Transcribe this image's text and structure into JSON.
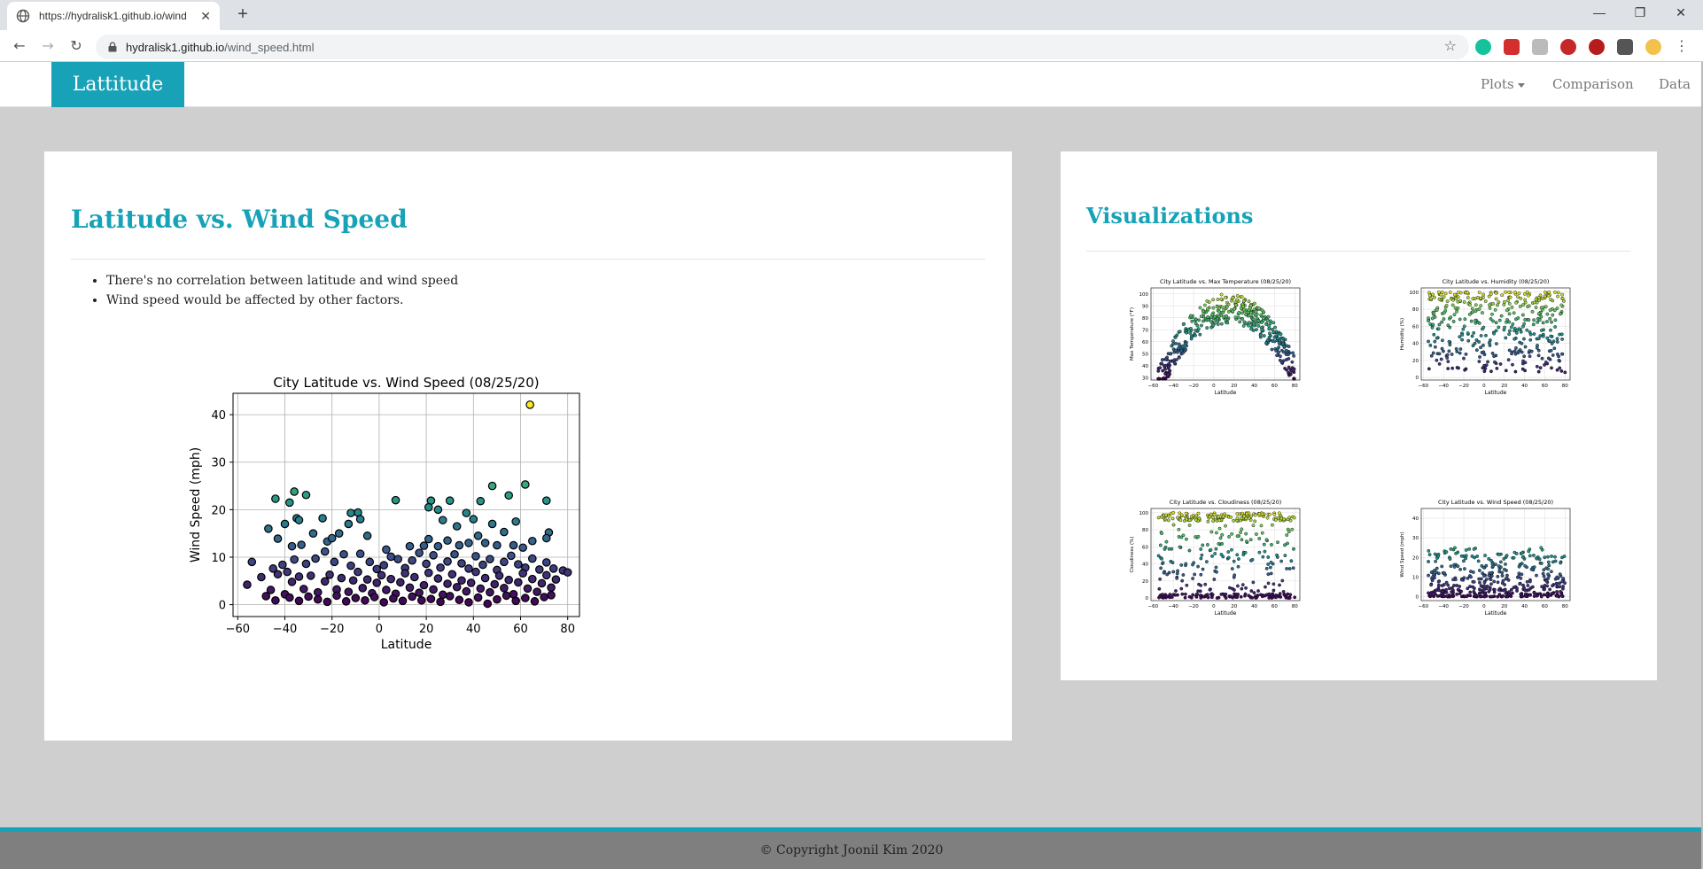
{
  "browser": {
    "tab_title": "https://hydralisk1.github.io/wind",
    "tab_close": "✕",
    "new_tab": "+",
    "url_host": "hydralisk1.github.io",
    "url_path": "/wind_speed.html",
    "win_min": "—",
    "win_restore": "❐",
    "win_close": "✕"
  },
  "nav": {
    "brand": "Lattitude",
    "plots": "Plots",
    "comparison": "Comparison",
    "data": "Data"
  },
  "main": {
    "title": "Latitude vs. Wind Speed",
    "bullets": [
      "There's no correlation between latitude and wind speed",
      "Wind speed would be affected by other factors."
    ]
  },
  "side": {
    "title": "Visualizations",
    "thumbnails": [
      {
        "title": "City Latitude vs. Max Temperature (08/25/20)",
        "ylabel": "Max Temperature (°F)",
        "xlabel": "Latitude",
        "yticks": [
          "30",
          "40",
          "50",
          "60",
          "70",
          "80",
          "90",
          "100"
        ]
      },
      {
        "title": "City Latitude vs. Humidity (08/25/20)",
        "ylabel": "Humidity (%)",
        "xlabel": "Latitude",
        "yticks": [
          "0",
          "20",
          "40",
          "60",
          "80",
          "100"
        ]
      },
      {
        "title": "City Latitude vs. Cloudiness (08/25/20)",
        "ylabel": "Cloudiness (%)",
        "xlabel": "Latitude",
        "yticks": [
          "0",
          "20",
          "40",
          "60",
          "80",
          "100"
        ]
      },
      {
        "title": "City Latitude vs. Wind Speed (08/25/20)",
        "ylabel": "Wind Speed (mph)",
        "xlabel": "Latitude",
        "yticks": [
          "0",
          "10",
          "20",
          "30",
          "40"
        ]
      }
    ]
  },
  "footer": {
    "copyright": "© Copyright Joonil Kim 2020"
  },
  "colors": {
    "accent": "#17a2b8",
    "background": "#cfcfcf"
  },
  "chart_data": {
    "type": "scatter",
    "title": "City Latitude vs. Wind Speed (08/25/20)",
    "xlabel": "Latitude",
    "ylabel": "Wind Speed (mph)",
    "xlim": [
      -62,
      85
    ],
    "ylim": [
      -2.5,
      44.5
    ],
    "xticks": [
      -60,
      -40,
      -20,
      0,
      20,
      40,
      60,
      80
    ],
    "yticks": [
      0,
      10,
      20,
      30,
      40
    ],
    "grid": true,
    "colormap": "viridis",
    "points": [
      [
        64,
        42.1
      ],
      [
        62,
        25.3
      ],
      [
        48,
        25
      ],
      [
        -36,
        23.8
      ],
      [
        -44,
        22.3
      ],
      [
        -31,
        23.1
      ],
      [
        -38,
        21.5
      ],
      [
        7,
        22
      ],
      [
        22,
        21.9
      ],
      [
        30,
        21.9
      ],
      [
        43,
        21.8
      ],
      [
        71,
        21.9
      ],
      [
        55,
        23
      ],
      [
        -40,
        17
      ],
      [
        -35,
        18.2
      ],
      [
        -34,
        17.8
      ],
      [
        -24,
        18.2
      ],
      [
        -12,
        19.3
      ],
      [
        -9,
        19.4
      ],
      [
        -8,
        18
      ],
      [
        -13,
        17
      ],
      [
        21,
        20.5
      ],
      [
        25,
        20
      ],
      [
        27,
        17.8
      ],
      [
        33,
        16.5
      ],
      [
        37,
        19.3
      ],
      [
        40,
        18
      ],
      [
        48,
        17
      ],
      [
        58,
        17.5
      ],
      [
        72,
        15.2
      ],
      [
        -47,
        16
      ],
      [
        -43,
        13.9
      ],
      [
        -37,
        12.3
      ],
      [
        -33,
        12.6
      ],
      [
        -28,
        15
      ],
      [
        -22,
        13.3
      ],
      [
        -20,
        14
      ],
      [
        -17,
        15
      ],
      [
        -5,
        14.5
      ],
      [
        3,
        11.6
      ],
      [
        13,
        12.3
      ],
      [
        19,
        12.4
      ],
      [
        21,
        13.8
      ],
      [
        25,
        12.3
      ],
      [
        29,
        13.5
      ],
      [
        34,
        12.5
      ],
      [
        38,
        13
      ],
      [
        42,
        14.5
      ],
      [
        45,
        13
      ],
      [
        50,
        12.5
      ],
      [
        53,
        15.3
      ],
      [
        57,
        12.5
      ],
      [
        61,
        12
      ],
      [
        65,
        13.4
      ],
      [
        71,
        14
      ],
      [
        -54,
        9
      ],
      [
        -45,
        7.6
      ],
      [
        -41,
        8.4
      ],
      [
        -39,
        6.9
      ],
      [
        -36,
        9.5
      ],
      [
        -31,
        8.6
      ],
      [
        -27,
        9.7
      ],
      [
        -23,
        11.2
      ],
      [
        -19,
        9
      ],
      [
        -15,
        10.6
      ],
      [
        -12,
        8.2
      ],
      [
        -8,
        10.7
      ],
      [
        -4,
        9
      ],
      [
        -1,
        7.5
      ],
      [
        2,
        8.3
      ],
      [
        5,
        10.1
      ],
      [
        8,
        9.6
      ],
      [
        11,
        7.7
      ],
      [
        14,
        9.3
      ],
      [
        17,
        10.9
      ],
      [
        20,
        8.6
      ],
      [
        23,
        10.4
      ],
      [
        26,
        7.8
      ],
      [
        29,
        9.1
      ],
      [
        32,
        10.6
      ],
      [
        35,
        8.7
      ],
      [
        38,
        7.6
      ],
      [
        41,
        10.2
      ],
      [
        44,
        8.4
      ],
      [
        47,
        9.6
      ],
      [
        50,
        7.3
      ],
      [
        53,
        9
      ],
      [
        56,
        10.3
      ],
      [
        59,
        8.5
      ],
      [
        62,
        7.8
      ],
      [
        65,
        9.7
      ],
      [
        68,
        7.4
      ],
      [
        71,
        8.9
      ],
      [
        74,
        7.6
      ],
      [
        78,
        7.2
      ],
      [
        80,
        6.8
      ],
      [
        -56,
        4.2
      ],
      [
        -50,
        5.8
      ],
      [
        -46,
        3.1
      ],
      [
        -43,
        6.4
      ],
      [
        -40,
        2.2
      ],
      [
        -37,
        4.8
      ],
      [
        -34,
        5.9
      ],
      [
        -32,
        3.3
      ],
      [
        -29,
        6.1
      ],
      [
        -26,
        2.6
      ],
      [
        -23,
        4.9
      ],
      [
        -21,
        6.3
      ],
      [
        -18,
        3.2
      ],
      [
        -16,
        5.6
      ],
      [
        -13,
        2.7
      ],
      [
        -11,
        5.1
      ],
      [
        -9,
        6.9
      ],
      [
        -7,
        3.5
      ],
      [
        -5,
        5.3
      ],
      [
        -3,
        2.4
      ],
      [
        -1,
        4.6
      ],
      [
        1,
        6.2
      ],
      [
        3,
        3.1
      ],
      [
        5,
        5.4
      ],
      [
        7,
        2.3
      ],
      [
        9,
        4.7
      ],
      [
        11,
        6.6
      ],
      [
        13,
        3.6
      ],
      [
        15,
        5.8
      ],
      [
        17,
        2.5
      ],
      [
        19,
        4.1
      ],
      [
        21,
        6.7
      ],
      [
        23,
        3.2
      ],
      [
        25,
        5.5
      ],
      [
        27,
        2.1
      ],
      [
        29,
        4.4
      ],
      [
        31,
        6.4
      ],
      [
        33,
        3.7
      ],
      [
        35,
        5.1
      ],
      [
        37,
        2.8
      ],
      [
        39,
        4.6
      ],
      [
        41,
        6.9
      ],
      [
        43,
        3.4
      ],
      [
        45,
        5.6
      ],
      [
        47,
        2.6
      ],
      [
        49,
        4.3
      ],
      [
        51,
        6.1
      ],
      [
        53,
        3.5
      ],
      [
        55,
        5.2
      ],
      [
        57,
        2.2
      ],
      [
        59,
        4.7
      ],
      [
        61,
        6.6
      ],
      [
        63,
        3.4
      ],
      [
        65,
        5.4
      ],
      [
        67,
        2.7
      ],
      [
        69,
        4.5
      ],
      [
        71,
        6.2
      ],
      [
        73,
        3.6
      ],
      [
        75,
        5.3
      ],
      [
        -48,
        1.8
      ],
      [
        -44,
        0.9
      ],
      [
        -38,
        1.5
      ],
      [
        -34,
        0.8
      ],
      [
        -30,
        1.7
      ],
      [
        -26,
        1.1
      ],
      [
        -22,
        0.6
      ],
      [
        -18,
        1.9
      ],
      [
        -14,
        0.7
      ],
      [
        -10,
        1.4
      ],
      [
        -6,
        0.9
      ],
      [
        -2,
        1.6
      ],
      [
        2,
        0.5
      ],
      [
        6,
        1.3
      ],
      [
        10,
        0.8
      ],
      [
        14,
        1.7
      ],
      [
        18,
        0.9
      ],
      [
        22,
        1.2
      ],
      [
        26,
        0.6
      ],
      [
        30,
        1.8
      ],
      [
        34,
        1
      ],
      [
        38,
        0.5
      ],
      [
        42,
        1.5
      ],
      [
        46,
        0.2
      ],
      [
        50,
        1.1
      ],
      [
        54,
        1.9
      ],
      [
        58,
        0.8
      ],
      [
        62,
        1.4
      ],
      [
        66,
        0.7
      ],
      [
        70,
        1.6
      ],
      [
        73,
        2
      ]
    ]
  }
}
